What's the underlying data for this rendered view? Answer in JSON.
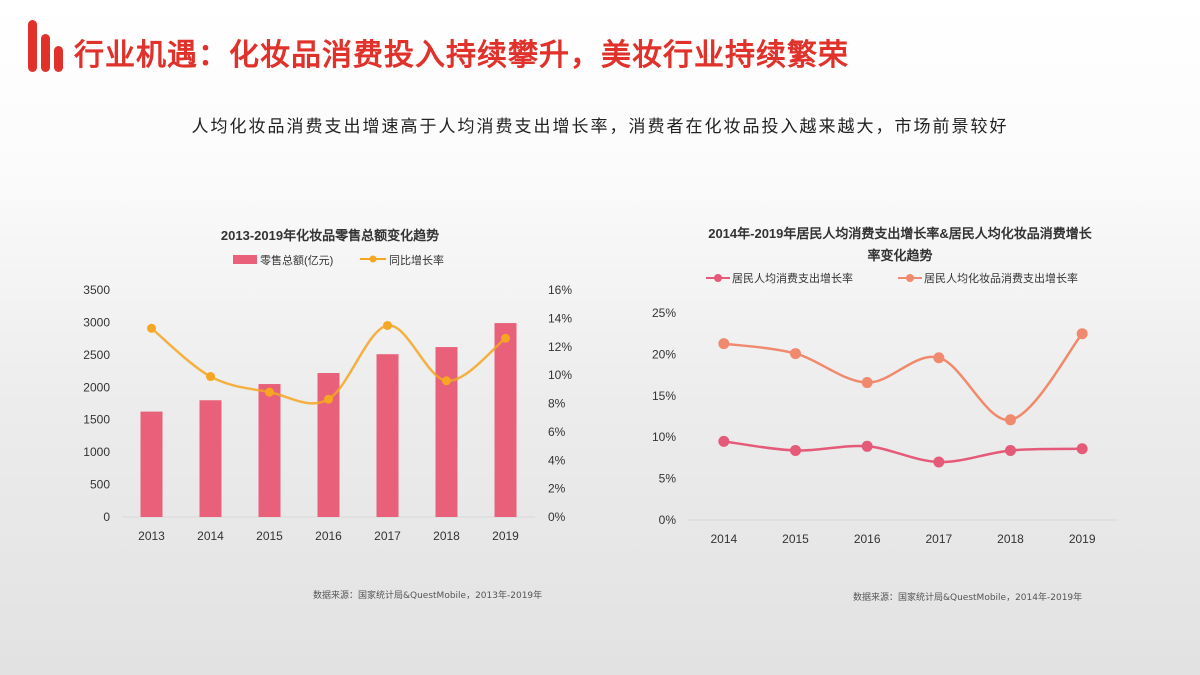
{
  "header": {
    "title": "行业机遇：化妆品消费投入持续攀升，美妆行业持续繁荣",
    "brand_color": "#e0312b"
  },
  "subtitle": "人均化妆品消费支出增速高于人均消费支出增长率，消费者在化妆品投入越来越大，市场前景较好",
  "chart_data": [
    {
      "type": "bar+line",
      "title": "2013-2019年化妆品零售总额变化趋势",
      "categories": [
        "2013",
        "2014",
        "2015",
        "2016",
        "2017",
        "2018",
        "2019"
      ],
      "series": [
        {
          "name": "零售总额(亿元)",
          "type": "bar",
          "axis": "left",
          "color": "#e8607a",
          "values": [
            1625,
            1800,
            2050,
            2220,
            2510,
            2620,
            2990
          ]
        },
        {
          "name": "同比增长率",
          "type": "line",
          "axis": "right",
          "color": "#f5a623",
          "smooth": true,
          "values": [
            13.3,
            9.9,
            8.8,
            8.3,
            13.5,
            9.6,
            12.6
          ]
        }
      ],
      "y_left": {
        "ylim": [
          0,
          3500
        ],
        "ticks": [
          "0",
          "500",
          "1000",
          "1500",
          "2000",
          "2500",
          "3000",
          "3500"
        ]
      },
      "y_right": {
        "ylim": [
          0,
          16
        ],
        "ticks": [
          "0%",
          "2%",
          "4%",
          "6%",
          "8%",
          "10%",
          "12%",
          "14%",
          "16%"
        ]
      },
      "legend": "top",
      "grid": false,
      "source": "数据来源：国家统计局&QuestMobile，2013年-2019年"
    },
    {
      "type": "line",
      "title": "2014年-2019年居民人均消费支出增长率&居民人均化妆品消费增长率变化趋势",
      "categories": [
        "2014",
        "2015",
        "2016",
        "2017",
        "2018",
        "2019"
      ],
      "series": [
        {
          "name": "居民人均消费支出增长率",
          "color": "#e55a78",
          "smooth": true,
          "values": [
            9.5,
            8.4,
            8.9,
            7.0,
            8.4,
            8.6
          ]
        },
        {
          "name": "居民人均化妆品消费支出增长率",
          "color": "#f08a6e",
          "smooth": true,
          "values": [
            21.3,
            20.1,
            16.6,
            19.6,
            12.1,
            22.5
          ]
        }
      ],
      "ylim": [
        0,
        25
      ],
      "yticks": [
        "0%",
        "5%",
        "10%",
        "15%",
        "20%",
        "25%"
      ],
      "legend": "top",
      "grid": false,
      "source": "数据来源：国家统计局&QuestMobile，2014年-2019年"
    }
  ]
}
